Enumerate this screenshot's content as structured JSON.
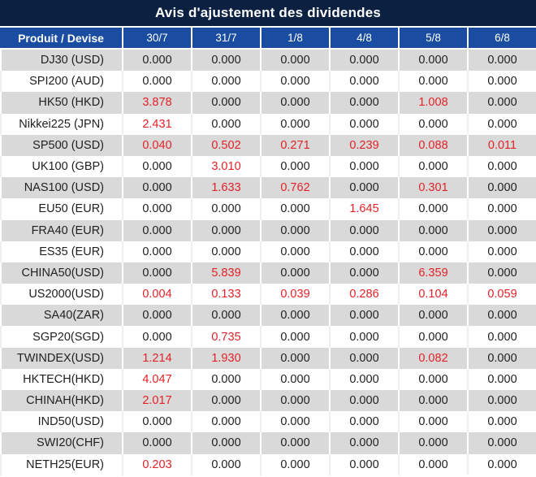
{
  "title": "Avis d'ajustement des dividendes",
  "colors": {
    "title_bg": "#0c2142",
    "header_bg": "#1a4da1",
    "stripe_bg": "#d9d9d9",
    "value_color": "#1f1f1f",
    "nonzero_color": "#e32227"
  },
  "table": {
    "product_header": "Produit / Devise",
    "date_headers": [
      "30/7",
      "31/7",
      "1/8",
      "4/8",
      "5/8",
      "6/8"
    ],
    "zero_value": "0.000",
    "rows": [
      {
        "product": "DJ30 (USD)",
        "values": [
          "0.000",
          "0.000",
          "0.000",
          "0.000",
          "0.000",
          "0.000"
        ]
      },
      {
        "product": "SPI200 (AUD)",
        "values": [
          "0.000",
          "0.000",
          "0.000",
          "0.000",
          "0.000",
          "0.000"
        ]
      },
      {
        "product": "HK50 (HKD)",
        "values": [
          "3.878",
          "0.000",
          "0.000",
          "0.000",
          "1.008",
          "0.000"
        ]
      },
      {
        "product": "Nikkei225 (JPN)",
        "values": [
          "2.431",
          "0.000",
          "0.000",
          "0.000",
          "0.000",
          "0.000"
        ]
      },
      {
        "product": "SP500 (USD)",
        "values": [
          "0.040",
          "0.502",
          "0.271",
          "0.239",
          "0.088",
          "0.011"
        ]
      },
      {
        "product": "UK100 (GBP)",
        "values": [
          "0.000",
          "3.010",
          "0.000",
          "0.000",
          "0.000",
          "0.000"
        ]
      },
      {
        "product": "NAS100 (USD)",
        "values": [
          "0.000",
          "1.633",
          "0.762",
          "0.000",
          "0.301",
          "0.000"
        ]
      },
      {
        "product": "EU50 (EUR)",
        "values": [
          "0.000",
          "0.000",
          "0.000",
          "1.645",
          "0.000",
          "0.000"
        ]
      },
      {
        "product": "FRA40 (EUR)",
        "values": [
          "0.000",
          "0.000",
          "0.000",
          "0.000",
          "0.000",
          "0.000"
        ]
      },
      {
        "product": "ES35 (EUR)",
        "values": [
          "0.000",
          "0.000",
          "0.000",
          "0.000",
          "0.000",
          "0.000"
        ]
      },
      {
        "product": "CHINA50(USD)",
        "values": [
          "0.000",
          "5.839",
          "0.000",
          "0.000",
          "6.359",
          "0.000"
        ]
      },
      {
        "product": "US2000(USD)",
        "values": [
          "0.004",
          "0.133",
          "0.039",
          "0.286",
          "0.104",
          "0.059"
        ]
      },
      {
        "product": "SA40(ZAR)",
        "values": [
          "0.000",
          "0.000",
          "0.000",
          "0.000",
          "0.000",
          "0.000"
        ]
      },
      {
        "product": "SGP20(SGD)",
        "values": [
          "0.000",
          "0.735",
          "0.000",
          "0.000",
          "0.000",
          "0.000"
        ]
      },
      {
        "product": "TWINDEX(USD)",
        "values": [
          "1.214",
          "1.930",
          "0.000",
          "0.000",
          "0.082",
          "0.000"
        ]
      },
      {
        "product": "HKTECH(HKD)",
        "values": [
          "4.047",
          "0.000",
          "0.000",
          "0.000",
          "0.000",
          "0.000"
        ]
      },
      {
        "product": "CHINAH(HKD)",
        "values": [
          "2.017",
          "0.000",
          "0.000",
          "0.000",
          "0.000",
          "0.000"
        ]
      },
      {
        "product": "IND50(USD)",
        "values": [
          "0.000",
          "0.000",
          "0.000",
          "0.000",
          "0.000",
          "0.000"
        ]
      },
      {
        "product": "SWI20(CHF)",
        "values": [
          "0.000",
          "0.000",
          "0.000",
          "0.000",
          "0.000",
          "0.000"
        ]
      },
      {
        "product": "NETH25(EUR)",
        "values": [
          "0.203",
          "0.000",
          "0.000",
          "0.000",
          "0.000",
          "0.000"
        ]
      }
    ]
  }
}
